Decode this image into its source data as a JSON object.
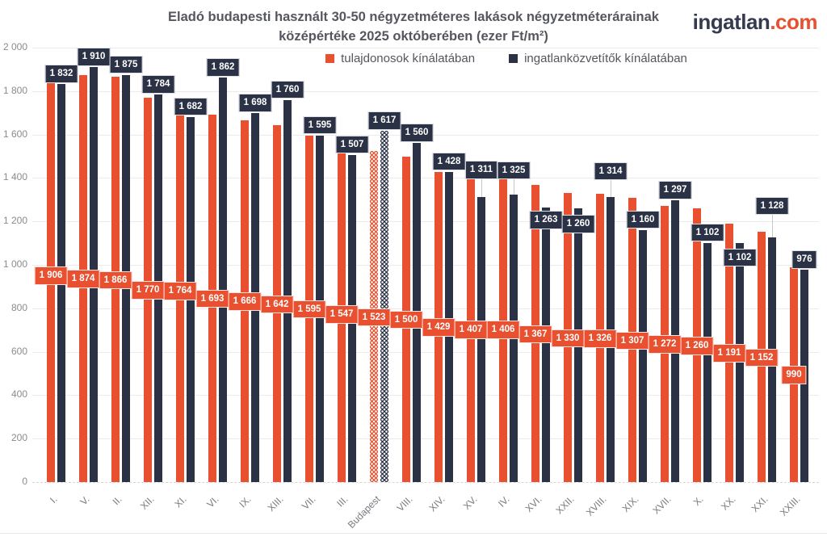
{
  "header": {
    "title_line1": "Eladó budapesti használt 30-50 négyzetméteres lakások négyzetméterárainak",
    "title_line2": "középértéke 2025 októberében (ezer Ft/m²)",
    "logo_part1": "ingatlan",
    "logo_part2": ".com"
  },
  "chart_data": {
    "type": "bar",
    "title": "Eladó budapesti használt 30-50 négyzetméteres lakások négyzetméterárainak középértéke 2025 októberében (ezer Ft/m²)",
    "categories": [
      "I.",
      "V.",
      "II.",
      "XII.",
      "XI.",
      "VI.",
      "IX.",
      "XIII.",
      "VII.",
      "III.",
      "Budapest",
      "VIII.",
      "XIV.",
      "XV.",
      "IV.",
      "XVI.",
      "XXII.",
      "XVIII.",
      "XIX.",
      "XVII.",
      "X.",
      "XX.",
      "XXI.",
      "XXIII."
    ],
    "series": [
      {
        "name": "tulajdonosok kínálatában",
        "color": "#E8502F",
        "values": [
          1906,
          1874,
          1866,
          1770,
          1764,
          1693,
          1666,
          1642,
          1595,
          1547,
          1523,
          1500,
          1429,
          1407,
          1406,
          1367,
          1330,
          1326,
          1307,
          1272,
          1260,
          1191,
          1152,
          990
        ]
      },
      {
        "name": "ingatlanközvetítők kínálatában",
        "color": "#2B3245",
        "values": [
          1832,
          1910,
          1875,
          1784,
          1682,
          1862,
          1698,
          1760,
          1595,
          1507,
          1617,
          1560,
          1428,
          1311,
          1325,
          1263,
          1260,
          1314,
          1160,
          1297,
          1102,
          1102,
          1128,
          976
        ]
      }
    ],
    "patterned_category": "Budapest",
    "xlabel": "",
    "ylabel": "",
    "ylim": [
      0,
      2000
    ],
    "ytick_step": 200,
    "grid": true,
    "legend_position": "top"
  },
  "colors": {
    "owners": "#E8502F",
    "agents": "#2B3245",
    "background": "#FFFFFF",
    "grid": "#EBEBEB",
    "axis_text": "#8B8B90",
    "title_text": "#55565E",
    "leader_line": "#C8C8C8"
  }
}
